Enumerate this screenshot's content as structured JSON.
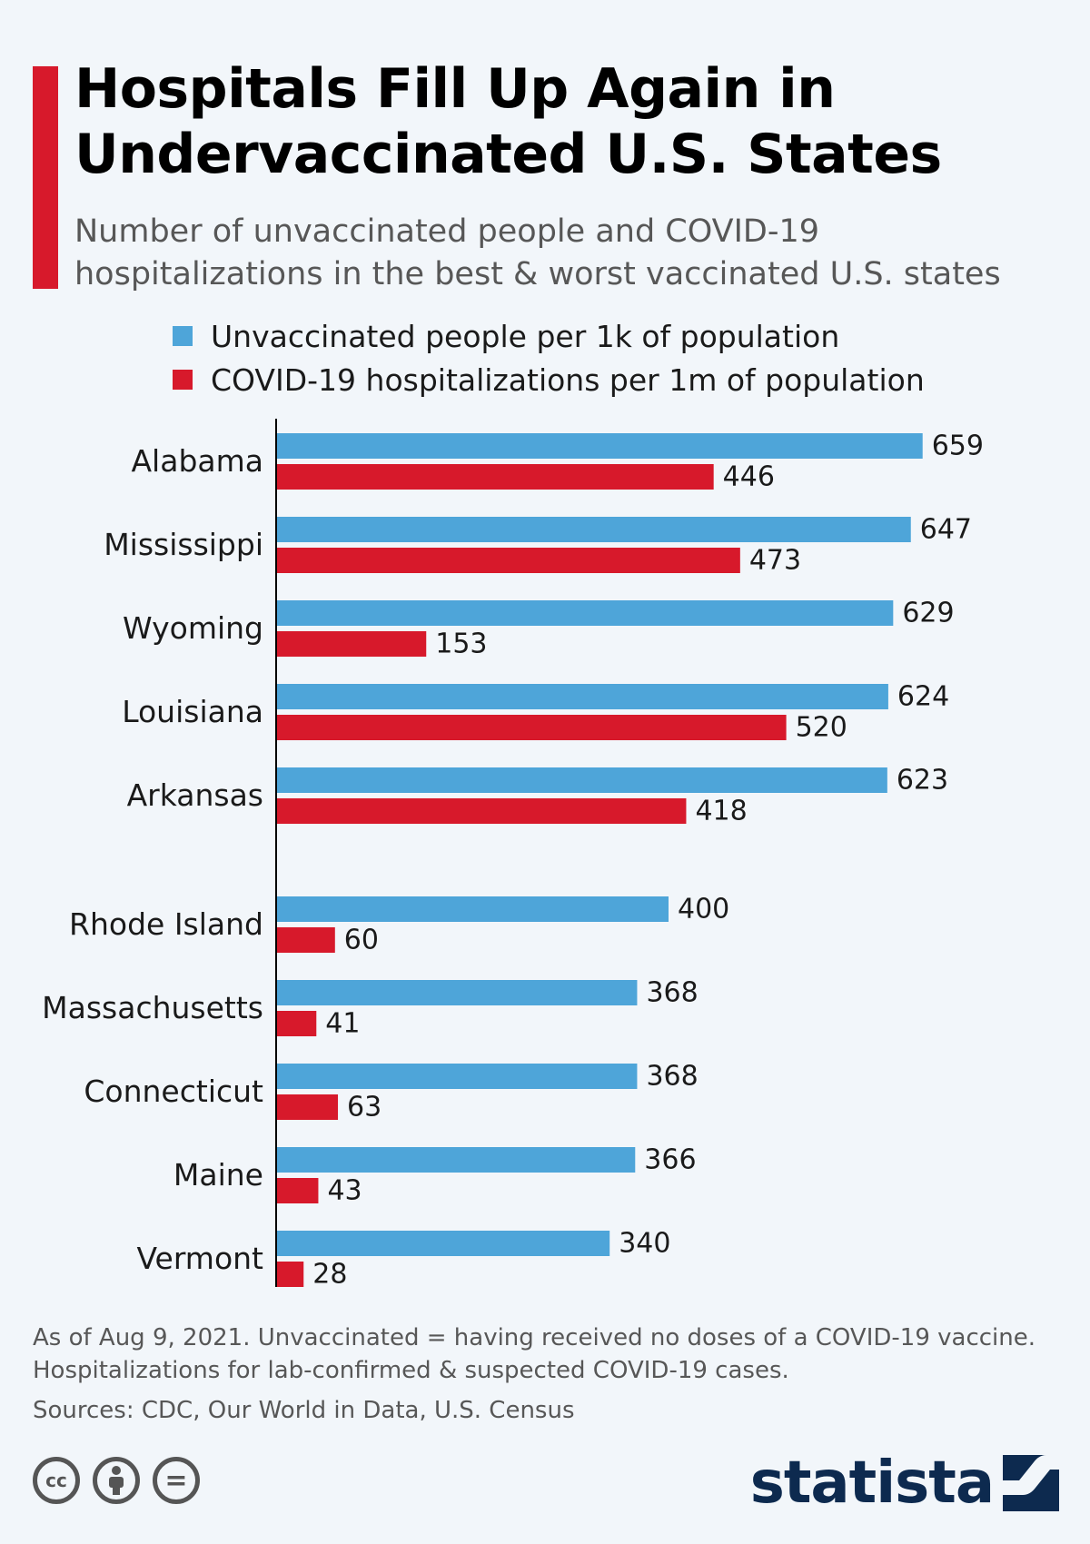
{
  "header": {
    "title": "Hospitals Fill Up Again in Undervaccinated U.S. States",
    "subtitle": "Number of unvaccinated people and COVID-19 hospitalizations in the best & worst vaccinated U.S. states"
  },
  "colors": {
    "accent": "#d7192b",
    "unvaccinated": "#4ea5d9",
    "hospitalizations": "#d7192b",
    "axis": "#000000"
  },
  "chart_data": {
    "type": "bar",
    "orientation": "horizontal",
    "categories": [
      "Alabama",
      "Mississippi",
      "Wyoming",
      "Louisiana",
      "Arkansas",
      "Rhode Island",
      "Massachusetts",
      "Connecticut",
      "Maine",
      "Vermont"
    ],
    "series": [
      {
        "name": "Unvaccinated people per 1k of population",
        "values": [
          659,
          647,
          629,
          624,
          623,
          400,
          368,
          368,
          366,
          340
        ]
      },
      {
        "name": "COVID-19 hospitalizations per 1m of population",
        "values": [
          446,
          473,
          153,
          520,
          418,
          60,
          41,
          63,
          43,
          28
        ]
      }
    ],
    "xlim": [
      0,
      700
    ],
    "grid": false,
    "legend_position": "top"
  },
  "footer": {
    "note_line1": "As of Aug 9, 2021. Unvaccinated = having received no doses of a COVID-19 vaccine.",
    "note_line2": "Hospitalizations for lab-confirmed & suspected COVID-19 cases.",
    "source": "Sources: CDC, Our World in Data, U.S. Census",
    "brand": "statista",
    "license_icons": [
      "cc-icon",
      "attribution-icon",
      "no-derivatives-icon"
    ],
    "license_labels": [
      "cc",
      "",
      "="
    ]
  }
}
